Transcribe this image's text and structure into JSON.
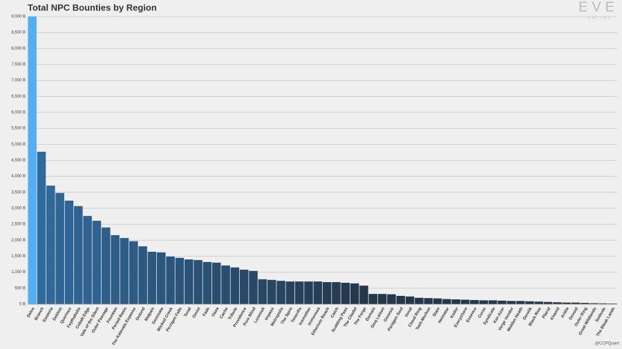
{
  "chart_data": {
    "type": "bar",
    "title": "Total NPC Bounties by Region",
    "logo": "EVE",
    "logo_sub": "ONLINE",
    "credit": "@CCPQuant",
    "categories": [
      "Delve",
      "Branch",
      "Esoteria",
      "Deklein",
      "Querious",
      "Feythabolis",
      "Cobalt Edge",
      "Vale of the Silent",
      "Outer Passage",
      "Fountain",
      "Period Basis",
      "The Kalevala Expanse",
      "Detorid",
      "Malpais",
      "Geminate",
      "Wicked Creek",
      "Perrigen Falls",
      "Tenal",
      "Omist",
      "Fade",
      "Oasa",
      "Cache",
      "Tribute",
      "Providence",
      "Pure Blind",
      "Lonetrek",
      "Impass",
      "Metropolis",
      "The Spire",
      "Tenerifis",
      "Insmother",
      "Immensea",
      "Etherium Reach",
      "Catch",
      "Scalding Pass",
      "The Citadel",
      "The Forge",
      "Domain",
      "Sinq Laison",
      "Genesis",
      "Paragon Soul",
      "Venal",
      "Cloud Ring",
      "Tash-Murkon",
      "Stain",
      "Heimatar",
      "Kador",
      "Everyshore",
      "Essence",
      "Curse",
      "Syndicate",
      "Kor-Azor",
      "Verge Vendor",
      "Molden Heath",
      "Derelik",
      "Black Rise",
      "Placid",
      "Khanid",
      "Aridia",
      "Devoid",
      "Outer Ring",
      "Great Wildlands",
      "Solitude",
      "The Bleak Lands"
    ],
    "values": [
      9000,
      4770,
      3710,
      3480,
      3240,
      3070,
      2760,
      2610,
      2400,
      2160,
      2070,
      1970,
      1810,
      1640,
      1620,
      1490,
      1450,
      1400,
      1380,
      1320,
      1300,
      1210,
      1150,
      1080,
      1040,
      780,
      760,
      730,
      710,
      710,
      710,
      710,
      690,
      690,
      670,
      650,
      580,
      320,
      320,
      310,
      260,
      240,
      200,
      190,
      180,
      160,
      150,
      140,
      130,
      120,
      120,
      110,
      100,
      100,
      90,
      80,
      70,
      60,
      50,
      50,
      40,
      30,
      25,
      20
    ],
    "colors": [
      "#56aef2",
      "#30699b",
      "#24384c"
    ],
    "ylim": [
      0,
      9000
    ],
    "yticks": [
      {
        "value": 0,
        "label": "0 B"
      },
      {
        "value": 500,
        "label": "500 B"
      },
      {
        "value": 1000,
        "label": "1,000 B"
      },
      {
        "value": 1500,
        "label": "1,500 B"
      },
      {
        "value": 2000,
        "label": "2,000 B"
      },
      {
        "value": 2500,
        "label": "2,500 B"
      },
      {
        "value": 3000,
        "label": "3,000 B"
      },
      {
        "value": 3500,
        "label": "3,500 B"
      },
      {
        "value": 4000,
        "label": "4,000 B"
      },
      {
        "value": 4500,
        "label": "4,500 B"
      },
      {
        "value": 5000,
        "label": "5,000 B"
      },
      {
        "value": 5500,
        "label": "5,500 B"
      },
      {
        "value": 6000,
        "label": "6,000 B"
      },
      {
        "value": 6500,
        "label": "6,500 B"
      },
      {
        "value": 7000,
        "label": "7,000 B"
      },
      {
        "value": 7500,
        "label": "7,500 B"
      },
      {
        "value": 8000,
        "label": "8,000 B"
      },
      {
        "value": 8500,
        "label": "8,500 B"
      },
      {
        "value": 9000,
        "label": "9,000 B"
      }
    ],
    "grid": true
  }
}
